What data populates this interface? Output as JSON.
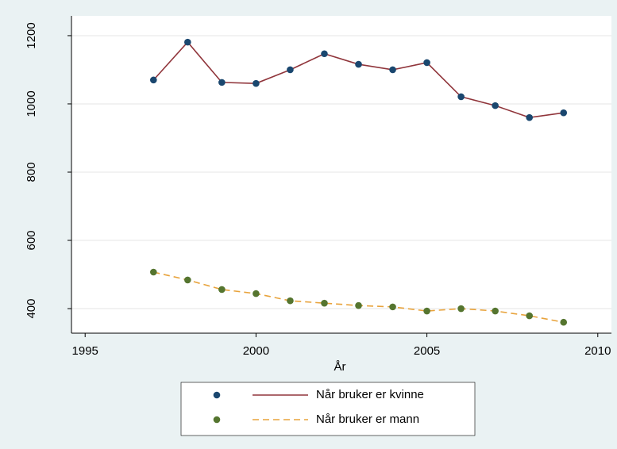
{
  "chart_data": {
    "type": "line",
    "x": [
      1997,
      1998,
      1999,
      2000,
      2001,
      2002,
      2003,
      2004,
      2005,
      2006,
      2007,
      2008,
      2009
    ],
    "series": [
      {
        "name": "Når bruker er kvinne",
        "color": "#90353b",
        "marker_color": "#1a476f",
        "dash": false,
        "values": [
          1070,
          1181,
          1063,
          1060,
          1100,
          1147,
          1116,
          1100,
          1121,
          1021,
          995,
          960,
          974
        ]
      },
      {
        "name": "Når bruker er mann",
        "color": "#e8a33c",
        "marker_color": "#55752f",
        "dash": true,
        "values": [
          507,
          484,
          456,
          444,
          423,
          416,
          409,
          405,
          393,
          400,
          393,
          379,
          360
        ]
      }
    ],
    "xlabel": "År",
    "xlim": [
      1994.6,
      2010.4
    ],
    "xticks": [
      1995,
      2000,
      2005,
      2010
    ],
    "ylim": [
      328,
      1258
    ],
    "yticks": [
      400,
      600,
      800,
      1000,
      1200
    ],
    "grid": true
  }
}
